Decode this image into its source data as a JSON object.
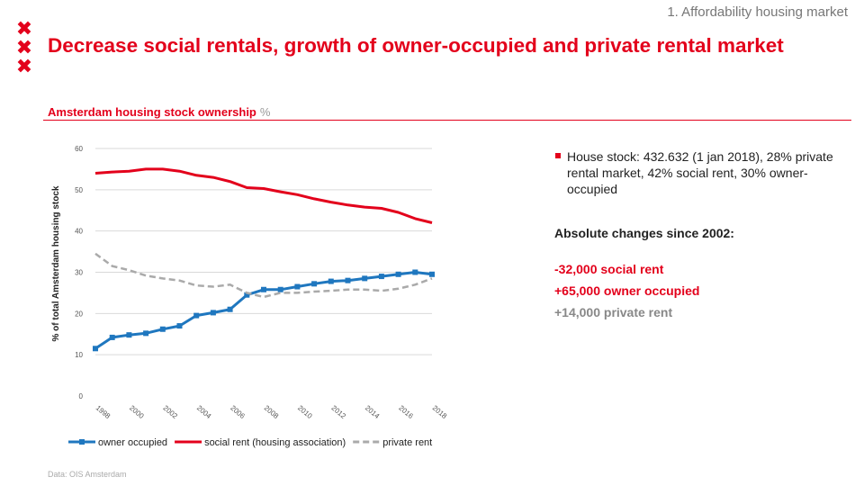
{
  "header": {
    "section_label": "1. Affordability housing market",
    "title": "Decrease social rentals, growth of owner-occupied and private rental market",
    "logo_glyph": "✖",
    "logo_color": "#e3001b"
  },
  "chart_heading": {
    "label": "Amsterdam housing stock ownership",
    "unit": "%"
  },
  "chart_data": {
    "type": "line",
    "ylabel": "% of total Amsterdam housing stock",
    "ylim": [
      0,
      60
    ],
    "yticks": [
      "0",
      "10",
      "20",
      "30",
      "40",
      "50",
      "60"
    ],
    "xlim": [
      1998,
      2018
    ],
    "xticks": [
      "1998",
      "2000",
      "2002",
      "2004",
      "2006",
      "2008",
      "2010",
      "2012",
      "2014",
      "2016",
      "2018"
    ],
    "grid": true,
    "legend_position": "bottom",
    "series": [
      {
        "name": "owner occupied",
        "color": "#1f77bf",
        "style": "solid",
        "marker": "square",
        "x": [
          1998,
          1999,
          2000,
          2001,
          2002,
          2003,
          2004,
          2005,
          2006,
          2007,
          2008,
          2009,
          2010,
          2011,
          2012,
          2013,
          2014,
          2015,
          2016,
          2017,
          2018
        ],
        "values": [
          11.5,
          14.2,
          14.8,
          15.2,
          16.2,
          17.0,
          19.5,
          20.2,
          21.0,
          24.5,
          25.8,
          25.8,
          26.5,
          27.2,
          27.8,
          28.0,
          28.5,
          29.0,
          29.5,
          30.0,
          29.5
        ]
      },
      {
        "name": "social rent (housing association)",
        "color": "#e3001b",
        "style": "solid",
        "marker": "none",
        "x": [
          1998,
          1999,
          2000,
          2001,
          2002,
          2003,
          2004,
          2005,
          2006,
          2007,
          2008,
          2009,
          2010,
          2011,
          2012,
          2013,
          2014,
          2015,
          2016,
          2017,
          2018
        ],
        "values": [
          54.0,
          54.3,
          54.5,
          55.0,
          55.0,
          54.5,
          53.5,
          53.0,
          52.0,
          50.5,
          50.3,
          49.5,
          48.8,
          47.8,
          47.0,
          46.3,
          45.8,
          45.5,
          44.5,
          43.0,
          42.0
        ]
      },
      {
        "name": "private rent",
        "color": "#aaaaaa",
        "style": "dashed",
        "marker": "none",
        "x": [
          1998,
          1999,
          2000,
          2001,
          2002,
          2003,
          2004,
          2005,
          2006,
          2007,
          2008,
          2009,
          2010,
          2011,
          2012,
          2013,
          2014,
          2015,
          2016,
          2017,
          2018
        ],
        "values": [
          34.5,
          31.5,
          30.5,
          29.2,
          28.5,
          28.0,
          26.8,
          26.5,
          27.0,
          25.0,
          24.0,
          25.0,
          25.0,
          25.3,
          25.5,
          25.8,
          25.8,
          25.5,
          26.0,
          27.0,
          28.5
        ]
      }
    ]
  },
  "source": "Data: OIS Amsterdam",
  "facts": {
    "bullet": "House stock: 432.632 (1 jan 2018), 28% private rental market, 42% social rent, 30% owner-occupied",
    "changes_heading": "Absolute changes since 2002:",
    "changes": [
      {
        "text": "-32,000 social rent",
        "color": "#e3001b"
      },
      {
        "text": "+65,000 owner occupied",
        "color": "#e3001b"
      },
      {
        "text": "+14,000 private rent",
        "color": "#888888"
      }
    ]
  }
}
